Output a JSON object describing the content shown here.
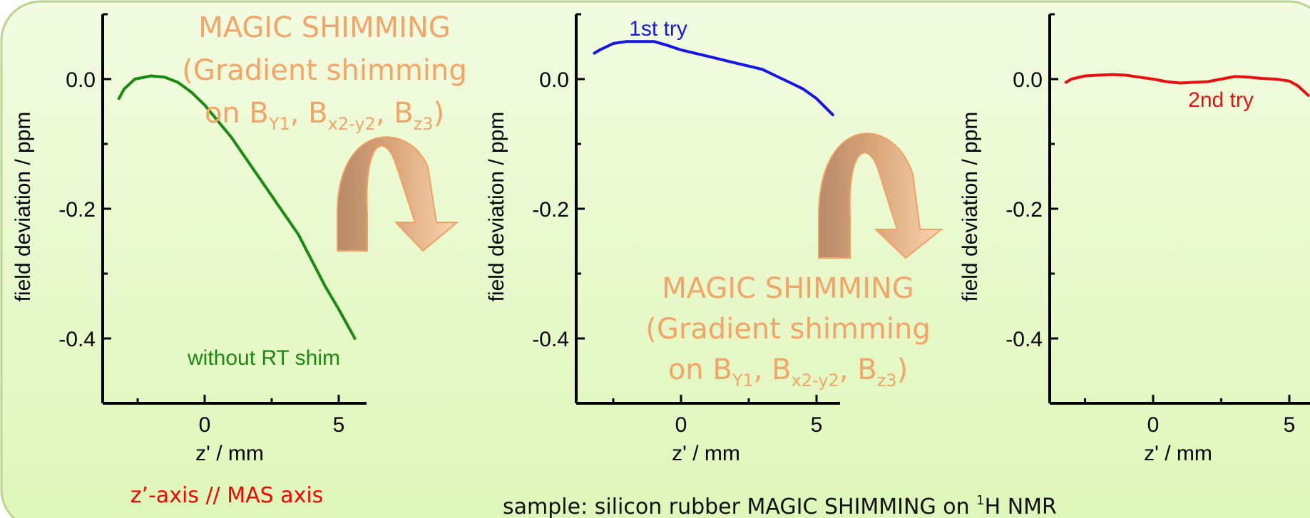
{
  "chart_data": [
    {
      "type": "line",
      "xlabel": "z' / mm",
      "ylabel": "field deviation / ppm",
      "xlim": [
        -4,
        6
      ],
      "ylim": [
        -0.5,
        0.12
      ],
      "xticks": [
        "0",
        "5"
      ],
      "yticks": [
        "0.0",
        "-0.2",
        "-0.4"
      ],
      "series": [
        {
          "name": "without RT shim",
          "color": "#1a8a10",
          "x": [
            -3.2,
            -3.0,
            -2.6,
            -2.0,
            -1.5,
            -1.0,
            -0.5,
            0.0,
            0.5,
            1.0,
            1.5,
            2.0,
            2.5,
            3.0,
            3.5,
            4.0,
            4.5,
            5.0,
            5.6
          ],
          "y": [
            -0.03,
            -0.015,
            0.0,
            0.005,
            0.003,
            -0.005,
            -0.02,
            -0.04,
            -0.065,
            -0.09,
            -0.12,
            -0.15,
            -0.18,
            -0.21,
            -0.24,
            -0.28,
            -0.32,
            -0.355,
            -0.4
          ]
        }
      ]
    },
    {
      "type": "line",
      "xlabel": "z' / mm",
      "ylabel": "field deviation / ppm",
      "xlim": [
        -4,
        6
      ],
      "ylim": [
        -0.5,
        0.12
      ],
      "xticks": [
        "0",
        "5"
      ],
      "yticks": [
        "0.0",
        "-0.2",
        "-0.4"
      ],
      "series": [
        {
          "name": "1st try",
          "color": "#1515e6",
          "x": [
            -3.2,
            -3.0,
            -2.5,
            -2.0,
            -1.5,
            -1.0,
            -0.5,
            0.0,
            0.5,
            1.0,
            1.5,
            2.0,
            2.5,
            3.0,
            3.5,
            4.0,
            4.5,
            5.0,
            5.6
          ],
          "y": [
            0.04,
            0.045,
            0.055,
            0.058,
            0.058,
            0.058,
            0.052,
            0.045,
            0.04,
            0.035,
            0.03,
            0.025,
            0.02,
            0.015,
            0.005,
            -0.005,
            -0.015,
            -0.03,
            -0.055
          ]
        }
      ]
    },
    {
      "type": "line",
      "xlabel": "z' / mm",
      "ylabel": "field deviation / ppm",
      "xlim": [
        -4,
        6
      ],
      "ylim": [
        -0.5,
        0.12
      ],
      "xticks": [
        "0",
        "5"
      ],
      "yticks": [
        "0.0",
        "-0.2",
        "-0.4"
      ],
      "series": [
        {
          "name": "2nd try",
          "color": "#e81010",
          "x": [
            -3.2,
            -3.0,
            -2.5,
            -2.0,
            -1.5,
            -1.0,
            -0.5,
            0.0,
            0.5,
            1.0,
            1.5,
            2.0,
            2.5,
            3.0,
            3.5,
            4.0,
            4.5,
            5.0,
            5.3,
            5.7
          ],
          "y": [
            -0.005,
            0.0,
            0.005,
            0.006,
            0.007,
            0.006,
            0.003,
            0.0,
            -0.004,
            -0.006,
            -0.005,
            -0.004,
            0.0,
            0.004,
            0.003,
            0.001,
            0.0,
            -0.003,
            -0.01,
            -0.025
          ]
        }
      ]
    }
  ],
  "annotations": {
    "magic_top": [
      "MAGIC SHIMMING",
      "(Gradient shimming",
      "on B",
      "Y1",
      ", B",
      "x2-y2",
      ", B",
      "z3",
      ")"
    ],
    "magic_bottom": [
      "MAGIC SHIMMING",
      "(Gradient shimming",
      "on B",
      "Y1",
      ", B",
      "x2-y2",
      ", B",
      "z3",
      ")"
    ],
    "axis_note": "z’-axis // MAS axis",
    "sample_prefix": "sample: silicon rubber MAGIC SHIMMING on ",
    "sample_sup": "1",
    "sample_suffix": "H NMR"
  },
  "colors": {
    "background_top": "#f2fbe0",
    "background_bottom": "#def6b8",
    "border": "#b9d58d",
    "magic_text": "#f4a466",
    "axis_note": "#ff0000",
    "arrow_light": "#f7c9a4",
    "arrow_dark": "#c98555"
  }
}
